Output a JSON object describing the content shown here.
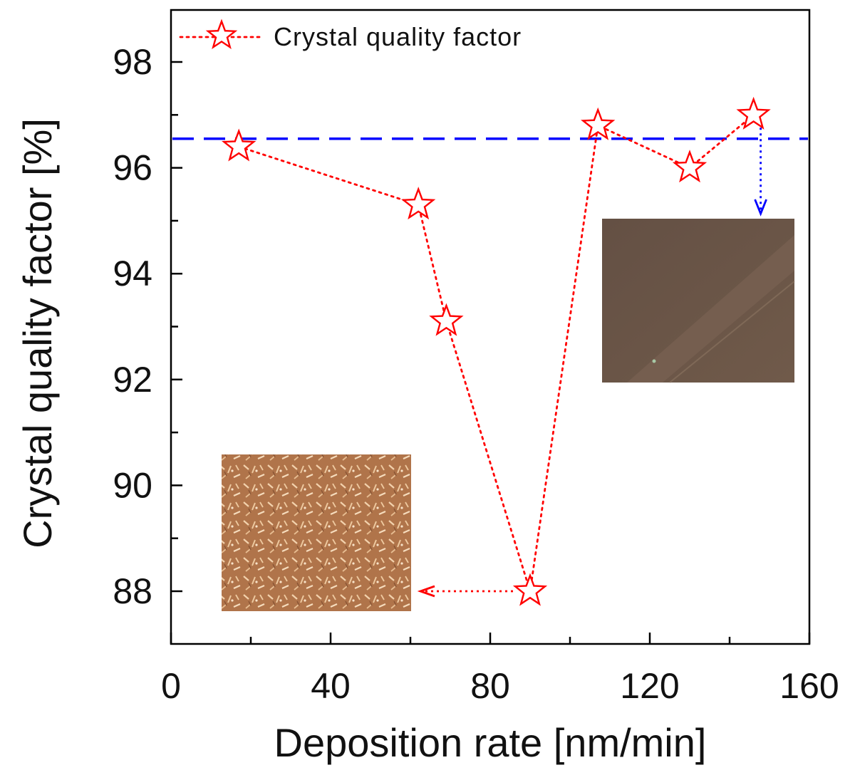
{
  "chart_data": {
    "type": "scatter",
    "xlabel": "Deposition rate [nm/min]",
    "ylabel": "Crystal quality factor [%]",
    "xlim": [
      0,
      160
    ],
    "ylim": [
      87,
      99
    ],
    "x_ticks": [
      0,
      40,
      80,
      120,
      160
    ],
    "y_ticks": [
      88,
      90,
      92,
      94,
      96,
      98
    ],
    "grid": false,
    "legend_position": "top-left",
    "series": [
      {
        "name": "Crystal quality factor",
        "marker": "open-star",
        "line_style": "dotted",
        "color": "#ff0000",
        "points": [
          {
            "x": 17,
            "y": 96.4
          },
          {
            "x": 62,
            "y": 95.3
          },
          {
            "x": 69,
            "y": 93.1
          },
          {
            "x": 90,
            "y": 88.0
          },
          {
            "x": 107,
            "y": 96.8
          },
          {
            "x": 130,
            "y": 96.0
          },
          {
            "x": 146,
            "y": 97.0
          }
        ]
      }
    ],
    "reference_line": {
      "y": 96.55,
      "style": "dashed",
      "color": "#0000ff"
    },
    "annotations": [
      {
        "kind": "arrow",
        "from_x": 90,
        "from_y": 88.0,
        "direction": "left",
        "color": "#ff0000",
        "target": "rough-surface-inset"
      },
      {
        "kind": "arrow",
        "from_x": 146,
        "from_y": 97.0,
        "direction": "down",
        "color": "#0000ff",
        "target": "smooth-surface-inset"
      }
    ],
    "insets": [
      {
        "name": "rough-surface-inset",
        "color": "#b4774c"
      },
      {
        "name": "smooth-surface-inset",
        "color": "#6a5445"
      }
    ]
  }
}
